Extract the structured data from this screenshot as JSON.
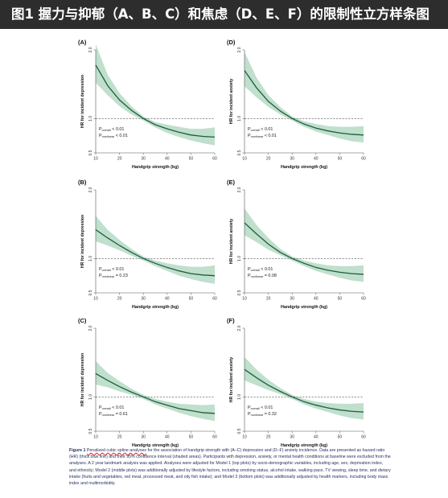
{
  "page_title": "图1 握力与抑郁（A、B、C）和焦虑（D、E、F）的限制性立方样条图",
  "caption": {
    "label": "Figure 1",
    "highlight": "Penalized cubic spline analyses",
    "text": " for the association of handgrip strength with (A–C) depression and (D–F) anxiety incidence. Data are presented as hazard ratio (HR) (thick blue line) and their 95% confidence interval (shaded areas). Participants with depression, anxiety, or mental health conditions at baseline were excluded from the analyses. A 2 year landmark analysis was applied. Analyses were adjusted for Model 1 (top plots) by socio-demographic variables, including age, sex, deprivation index, and ethnicity; Model 2 (middle plots) was additionally adjusted by lifestyle factors, including smoking status, alcohol intake, walking pace, TV viewing, sleep time, and dietary intake (fruits and vegetables, red meat, processed meat, and oily fish intake); and Model 3 (bottom plots) was additionally adjusted by health markers, including body mass index and multimorbidity."
  },
  "colors": {
    "line": "#1b5e3c",
    "band": "#b9dcc8",
    "reference": "#555555",
    "banner": "#2d2d2d"
  },
  "chart_data": [
    {
      "type": "line",
      "panel_label": "(A)",
      "xlabel": "Handgrip strength (kg)",
      "ylabel": "HR for incident depression",
      "xlim": [
        10,
        60
      ],
      "ylim": [
        0.5,
        2.0
      ],
      "xticks": [
        10,
        20,
        30,
        40,
        50,
        60
      ],
      "yticks": [
        {
          "v": 0.5,
          "t": "0.5"
        },
        {
          "v": 1.0,
          "t": "1.0"
        },
        {
          "v": 2.0,
          "t": "2.0"
        }
      ],
      "reference_line": 1.0,
      "p_overall": "P<sub>overall</sub> < 0.01",
      "p_nonlinear": "P<sub>nonlinear</sub> < 0.01",
      "x": [
        10,
        15,
        20,
        25,
        30,
        35,
        40,
        45,
        50,
        55,
        60
      ],
      "hr": [
        1.78,
        1.48,
        1.27,
        1.12,
        1.0,
        0.91,
        0.85,
        0.8,
        0.76,
        0.74,
        0.73
      ],
      "lower": [
        1.52,
        1.34,
        1.18,
        1.06,
        0.97,
        0.87,
        0.79,
        0.73,
        0.68,
        0.64,
        0.61
      ],
      "upper": [
        2.08,
        1.64,
        1.37,
        1.18,
        1.03,
        0.95,
        0.91,
        0.88,
        0.85,
        0.85,
        0.87
      ]
    },
    {
      "type": "line",
      "panel_label": "(B)",
      "xlabel": "Handgrip strength (kg)",
      "ylabel": "HR for incident depression",
      "xlim": [
        10,
        60
      ],
      "ylim": [
        0.5,
        2.0
      ],
      "xticks": [
        10,
        20,
        30,
        40,
        50,
        60
      ],
      "yticks": [
        {
          "v": 0.5,
          "t": "0.5"
        },
        {
          "v": 1.0,
          "t": "1.0"
        },
        {
          "v": 2.0,
          "t": "2.0"
        }
      ],
      "reference_line": 1.0,
      "p_overall": "P<sub>overall</sub> < 0.01",
      "p_nonlinear": "P<sub>nonlinear</sub> = 0.23",
      "x": [
        10,
        15,
        20,
        25,
        30,
        35,
        40,
        45,
        50,
        55,
        60
      ],
      "hr": [
        1.42,
        1.3,
        1.19,
        1.09,
        1.0,
        0.93,
        0.87,
        0.82,
        0.78,
        0.76,
        0.75
      ],
      "lower": [
        1.25,
        1.19,
        1.12,
        1.04,
        0.97,
        0.89,
        0.82,
        0.75,
        0.7,
        0.66,
        0.63
      ],
      "upper": [
        1.62,
        1.42,
        1.27,
        1.14,
        1.03,
        0.97,
        0.93,
        0.9,
        0.88,
        0.88,
        0.9
      ]
    },
    {
      "type": "line",
      "panel_label": "(C)",
      "xlabel": "Handgrip strength (kg)",
      "ylabel": "HR for incident depression",
      "xlim": [
        10,
        60
      ],
      "ylim": [
        0.5,
        2.0
      ],
      "xticks": [
        10,
        20,
        30,
        40,
        50,
        60
      ],
      "yticks": [
        {
          "v": 0.5,
          "t": "0.5"
        },
        {
          "v": 1.0,
          "t": "1.0"
        },
        {
          "v": 2.0,
          "t": "2.0"
        }
      ],
      "reference_line": 1.0,
      "p_overall": "P<sub>overall</sub> < 0.01",
      "p_nonlinear": "P<sub>nonlinear</sub> = 0.61",
      "x": [
        10,
        15,
        20,
        25,
        30,
        35,
        40,
        45,
        50,
        55,
        60
      ],
      "hr": [
        1.34,
        1.24,
        1.15,
        1.07,
        1.0,
        0.93,
        0.88,
        0.83,
        0.8,
        0.77,
        0.76
      ],
      "lower": [
        1.18,
        1.14,
        1.08,
        1.03,
        0.97,
        0.89,
        0.83,
        0.77,
        0.72,
        0.68,
        0.65
      ],
      "upper": [
        1.52,
        1.35,
        1.23,
        1.12,
        1.03,
        0.97,
        0.93,
        0.9,
        0.89,
        0.88,
        0.89
      ]
    },
    {
      "type": "line",
      "panel_label": "(D)",
      "xlabel": "Handgrip strength (kg)",
      "ylabel": "HR for incident anxiety",
      "xlim": [
        10,
        60
      ],
      "ylim": [
        0.5,
        2.0
      ],
      "xticks": [
        10,
        20,
        30,
        40,
        50,
        60
      ],
      "yticks": [
        {
          "v": 0.5,
          "t": "0.5"
        },
        {
          "v": 1.0,
          "t": "1.0"
        },
        {
          "v": 2.0,
          "t": "2.0"
        }
      ],
      "reference_line": 1.0,
      "p_overall": "P<sub>overall</sub> < 0.01",
      "p_nonlinear": "P<sub>nonlinear</sub> < 0.01",
      "x": [
        10,
        15,
        20,
        25,
        30,
        35,
        40,
        45,
        50,
        55,
        60
      ],
      "hr": [
        1.7,
        1.45,
        1.25,
        1.11,
        1.0,
        0.92,
        0.86,
        0.82,
        0.79,
        0.77,
        0.76
      ],
      "lower": [
        1.47,
        1.31,
        1.17,
        1.06,
        0.97,
        0.88,
        0.81,
        0.76,
        0.71,
        0.67,
        0.65
      ],
      "upper": [
        1.97,
        1.6,
        1.34,
        1.17,
        1.03,
        0.96,
        0.92,
        0.89,
        0.88,
        0.88,
        0.89
      ]
    },
    {
      "type": "line",
      "panel_label": "(E)",
      "xlabel": "Handgrip strength (kg)",
      "ylabel": "HR for incident anxiety",
      "xlim": [
        10,
        60
      ],
      "ylim": [
        0.5,
        2.0
      ],
      "xticks": [
        10,
        20,
        30,
        40,
        50,
        60
      ],
      "yticks": [
        {
          "v": 0.5,
          "t": "0.5"
        },
        {
          "v": 1.0,
          "t": "1.0"
        },
        {
          "v": 2.0,
          "t": "2.0"
        }
      ],
      "reference_line": 1.0,
      "p_overall": "P<sub>overall</sub> < 0.01",
      "p_nonlinear": "P<sub>nonlinear</sub> = 0.08",
      "x": [
        10,
        15,
        20,
        25,
        30,
        35,
        40,
        45,
        50,
        55,
        60
      ],
      "hr": [
        1.52,
        1.36,
        1.21,
        1.09,
        1.0,
        0.93,
        0.87,
        0.83,
        0.8,
        0.78,
        0.77
      ],
      "lower": [
        1.34,
        1.24,
        1.13,
        1.05,
        0.97,
        0.89,
        0.82,
        0.77,
        0.72,
        0.68,
        0.66
      ],
      "upper": [
        1.73,
        1.49,
        1.3,
        1.14,
        1.03,
        0.97,
        0.93,
        0.9,
        0.89,
        0.89,
        0.9
      ]
    },
    {
      "type": "line",
      "panel_label": "(F)",
      "xlabel": "Handgrip strength (kg)",
      "ylabel": "HR for incident anxiety",
      "xlim": [
        10,
        60
      ],
      "ylim": [
        0.5,
        2.0
      ],
      "xticks": [
        10,
        20,
        30,
        40,
        50,
        60
      ],
      "yticks": [
        {
          "v": 0.5,
          "t": "0.5"
        },
        {
          "v": 1.0,
          "t": "1.0"
        },
        {
          "v": 2.0,
          "t": "2.0"
        }
      ],
      "reference_line": 1.0,
      "p_overall": "P<sub>overall</sub> < 0.01",
      "p_nonlinear": "P<sub>nonlinear</sub> = 0.32",
      "x": [
        10,
        15,
        20,
        25,
        30,
        35,
        40,
        45,
        50,
        55,
        60
      ],
      "hr": [
        1.4,
        1.28,
        1.17,
        1.08,
        1.0,
        0.93,
        0.88,
        0.84,
        0.81,
        0.79,
        0.78
      ],
      "lower": [
        1.24,
        1.17,
        1.1,
        1.04,
        0.97,
        0.89,
        0.83,
        0.78,
        0.73,
        0.69,
        0.67
      ],
      "upper": [
        1.58,
        1.4,
        1.25,
        1.13,
        1.03,
        0.97,
        0.93,
        0.91,
        0.9,
        0.9,
        0.91
      ]
    }
  ]
}
